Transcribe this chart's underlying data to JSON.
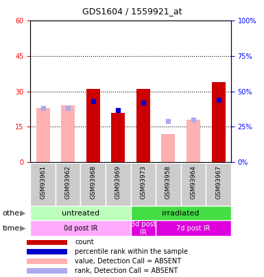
{
  "title": "GDS1604 / 1559921_at",
  "samples": [
    "GSM93961",
    "GSM93962",
    "GSM93968",
    "GSM93969",
    "GSM93973",
    "GSM93958",
    "GSM93964",
    "GSM93967"
  ],
  "count_values": [
    0,
    0,
    31,
    21,
    31,
    0,
    0,
    34
  ],
  "count_absent": [
    23,
    24,
    0,
    0,
    0,
    12,
    18,
    0
  ],
  "rank_values_pct": [
    0,
    0,
    43,
    37,
    42,
    0,
    0,
    44
  ],
  "rank_absent_pct": [
    38,
    38,
    0,
    0,
    0,
    29,
    30,
    0
  ],
  "count_color": "#cc0000",
  "count_absent_color": "#ffb0b0",
  "rank_color": "#0000cc",
  "rank_absent_color": "#aaaaee",
  "ylim_left": [
    0,
    60
  ],
  "ylim_right": [
    0,
    100
  ],
  "yticks_left": [
    0,
    15,
    30,
    45,
    60
  ],
  "yticks_right": [
    0,
    25,
    50,
    75,
    100
  ],
  "other_groups": [
    {
      "label": "untreated",
      "start": 0,
      "end": 4,
      "color": "#bbffbb"
    },
    {
      "label": "irradiated",
      "start": 4,
      "end": 8,
      "color": "#44dd44"
    }
  ],
  "time_groups": [
    {
      "label": "0d post IR",
      "start": 0,
      "end": 4,
      "color": "#ffaaff"
    },
    {
      "label": "3d post\nIR",
      "start": 4,
      "end": 5,
      "color": "#dd00dd"
    },
    {
      "label": "7d post IR",
      "start": 5,
      "end": 8,
      "color": "#dd00dd"
    }
  ],
  "legend_items": [
    {
      "color": "#cc0000",
      "label": "count"
    },
    {
      "color": "#0000cc",
      "label": "percentile rank within the sample"
    },
    {
      "color": "#ffb0b0",
      "label": "value, Detection Call = ABSENT"
    },
    {
      "color": "#aaaaee",
      "label": "rank, Detection Call = ABSENT"
    }
  ]
}
